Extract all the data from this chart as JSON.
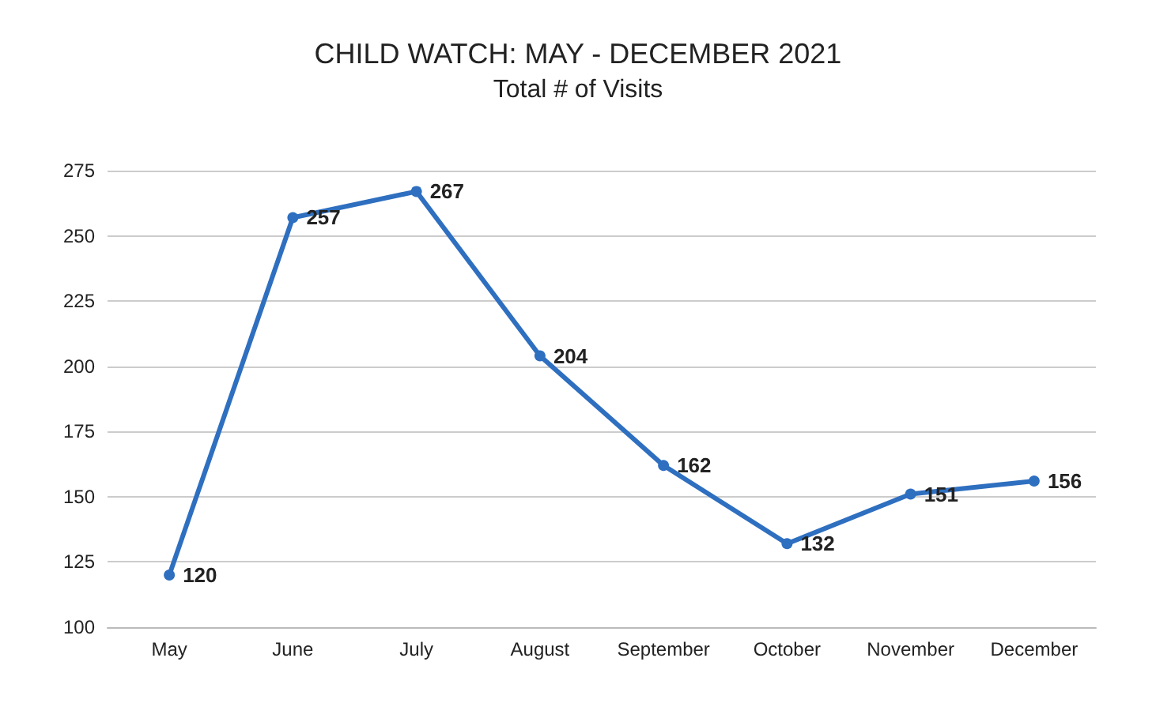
{
  "chart_data": {
    "type": "line",
    "title": "CHILD WATCH: MAY - DECEMBER 2021",
    "subtitle": "Total # of Visits",
    "categories": [
      "May",
      "June",
      "July",
      "August",
      "September",
      "October",
      "November",
      "December"
    ],
    "values": [
      120,
      257,
      267,
      204,
      162,
      132,
      151,
      156
    ],
    "color": "#2e6fc0",
    "ylim": [
      100,
      275
    ],
    "yticks": [
      100,
      125,
      150,
      175,
      200,
      225,
      250,
      275
    ],
    "grid": "y",
    "marker": "circle",
    "line_style": "solid",
    "data_labels": true
  }
}
